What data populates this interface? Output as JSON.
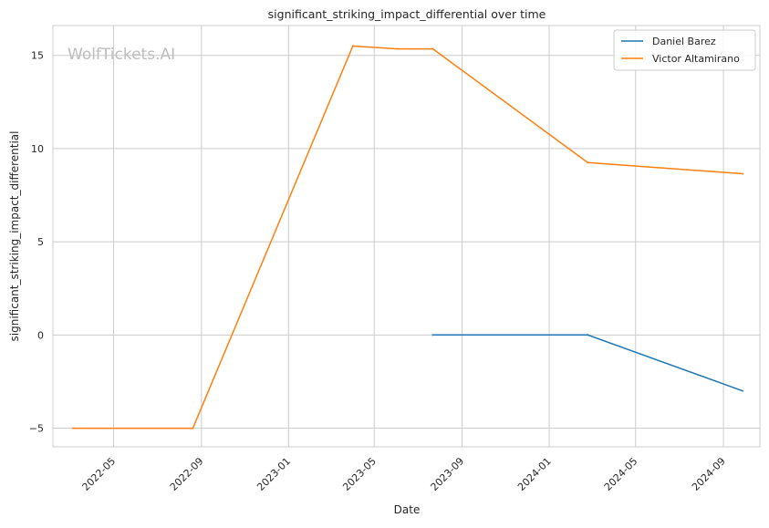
{
  "chart_data": {
    "type": "line",
    "title": "significant_striking_impact_differential over time",
    "xlabel": "Date",
    "ylabel": "significant_striking_impact_differential",
    "watermark": "WolfTickets.AI",
    "x_ticks": [
      "2022-05-01",
      "2022-09-01",
      "2023-01-01",
      "2023-05-01",
      "2023-09-01",
      "2024-01-01",
      "2024-05-01",
      "2024-09-01"
    ],
    "x_tick_labels": [
      "2022-05",
      "2022-09",
      "2023-01",
      "2023-05",
      "2023-09",
      "2024-01",
      "2024-05",
      "2024-09"
    ],
    "xlim": [
      "2022-02-05",
      "2024-10-22"
    ],
    "y_ticks": [
      -5,
      0,
      5,
      10,
      15
    ],
    "y_tick_labels": [
      "−5",
      "0",
      "5",
      "10",
      "15"
    ],
    "ylim": [
      -6.0,
      16.6
    ],
    "grid": true,
    "legend_position": "top-right",
    "series": [
      {
        "name": "Daniel Barez",
        "color": "#1f77b4",
        "x": [
          "2023-07-22",
          "2024-02-24",
          "2024-09-28"
        ],
        "y": [
          0,
          0,
          -3
        ]
      },
      {
        "name": "Victor Altamirano",
        "color": "#ff7f0e",
        "x": [
          "2022-03-05",
          "2022-08-20",
          "2023-04-01",
          "2023-06-03",
          "2023-07-22",
          "2024-02-24",
          "2024-09-28"
        ],
        "y": [
          -5,
          -5,
          15.5,
          15.35,
          15.35,
          9.25,
          8.65
        ]
      }
    ]
  }
}
